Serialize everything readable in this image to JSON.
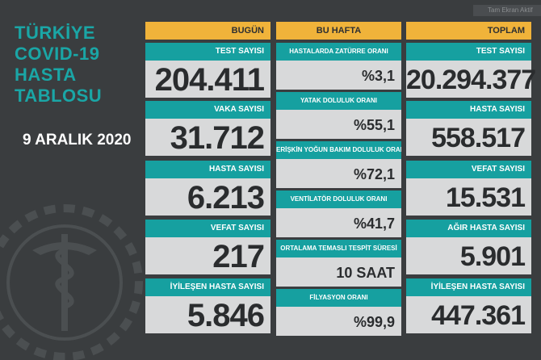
{
  "title_lines": [
    "TÜRKİYE",
    "COVID-19",
    "HASTA",
    "TABLOSU"
  ],
  "date": "9 ARALIK 2020",
  "fullscreen_label": "Tam Ekran Aktif",
  "today": {
    "header": "BUGÜN",
    "items": [
      {
        "label": "TEST SAYISI",
        "value": "204.411"
      },
      {
        "label": "VAKA SAYISI",
        "value": "31.712"
      },
      {
        "label": "HASTA SAYISI",
        "value": "6.213"
      },
      {
        "label": "VEFAT SAYISI",
        "value": "217"
      },
      {
        "label": "İYİLEŞEN HASTA SAYISI",
        "value": "5.846"
      }
    ]
  },
  "week": {
    "header": "BU HAFTA",
    "items": [
      {
        "label": "HASTALARDA ZATÜRRE ORANI",
        "value": "%3,1"
      },
      {
        "label": "YATAK DOLULUK ORANI",
        "value": "%55,1"
      },
      {
        "label": "ERİŞKİN YOĞUN BAKIM DOLULUK ORANI",
        "value": "%72,1"
      },
      {
        "label": "VENTİLATÖR DOLULUK ORANI",
        "value": "%41,7"
      },
      {
        "label": "ORTALAMA TEMASLI TESPİT SÜRESİ",
        "value": "10 SAAT"
      },
      {
        "label": "FİLYASYON ORANI",
        "value": "%99,9"
      }
    ]
  },
  "total": {
    "header": "TOPLAM",
    "items": [
      {
        "label": "TEST SAYISI",
        "value": "20.294.377"
      },
      {
        "label": "HASTA SAYISI",
        "value": "558.517"
      },
      {
        "label": "VEFAT SAYISI",
        "value": "15.531"
      },
      {
        "label": "AĞIR HASTA SAYISI",
        "value": "5.901"
      },
      {
        "label": "İYİLEŞEN HASTA SAYISI",
        "value": "447.361"
      }
    ]
  },
  "colors": {
    "background": "#3a3d3f",
    "accent_teal": "#16a0a0",
    "header_yellow": "#f0b33a",
    "value_bg": "#d8d9da"
  },
  "icons": {
    "emblem": "caduceus-emblem-icon"
  }
}
